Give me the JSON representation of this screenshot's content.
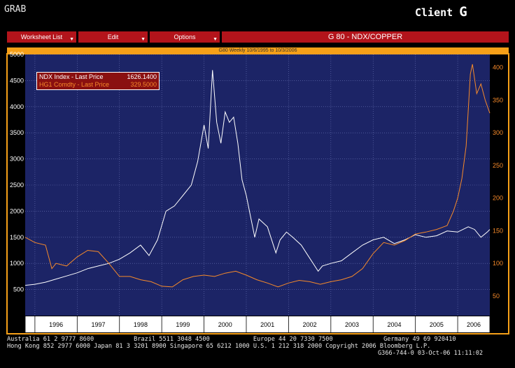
{
  "app": {
    "screen_name": "GRAB",
    "client_label": "Client",
    "client_letter": "G"
  },
  "menu": {
    "items": [
      {
        "label": "Worksheet List"
      },
      {
        "label": "Edit"
      },
      {
        "label": "Options"
      }
    ],
    "title": "G 80 - NDX/COPPER"
  },
  "chart_subtitle": "G80 Weekly 10/6/1995 to 10/3/2006",
  "legend": [
    {
      "label": "NDX Index - Last Price",
      "value": "1626.1400",
      "color": "#ffffff"
    },
    {
      "label": "HG1 Comdty - Last Price",
      "value": "329.5000",
      "color": "#f68a2a"
    }
  ],
  "footer": {
    "line1": "Australia 61 2 9777 8600           Brazil 5511 3048 4500            Europe 44 20 7330 7500              Germany 49 69 920410",
    "line2": "Hong Kong 852 2977 6000 Japan 81 3 3201 8900 Singapore 65 6212 1000 U.S. 1 212 318 2000 Copyright 2006 Bloomberg L.P.",
    "line3": "G366-744-0 03-Oct-06 11:11:02"
  },
  "colors": {
    "plot_bg": "#1c2466",
    "frame": "#f6a018",
    "grid": "#6c76b8",
    "ndx": "#ffffff",
    "copper": "#f68a2a",
    "bar_red": "#b3141b"
  },
  "chart_data": {
    "type": "line",
    "title": "G 80 - NDX/COPPER",
    "subtitle": "G80 Weekly 10/6/1995 to 10/3/2006",
    "x_range": [
      1995.77,
      2006.76
    ],
    "x_tick_labels": [
      "1996",
      "1997",
      "1998",
      "1999",
      "2000",
      "2001",
      "2002",
      "2003",
      "2004",
      "2005",
      "2006"
    ],
    "left_axis": {
      "ylim": [
        0,
        5000
      ],
      "ticks": [
        500,
        1000,
        1500,
        2000,
        2500,
        3000,
        3500,
        4000,
        4500,
        5000
      ]
    },
    "right_axis": {
      "ylim": [
        20,
        420
      ],
      "ticks": [
        50,
        100,
        150,
        200,
        250,
        300,
        350,
        400
      ]
    },
    "grid": true,
    "legend_position": "top-left",
    "series": [
      {
        "name": "NDX Index - Last Price",
        "axis": "left",
        "x": [
          1995.77,
          1996.0,
          1996.25,
          1996.5,
          1996.75,
          1997.0,
          1997.25,
          1997.5,
          1997.75,
          1998.0,
          1998.25,
          1998.5,
          1998.7,
          1998.9,
          1999.1,
          1999.3,
          1999.5,
          1999.7,
          1999.85,
          2000.0,
          2000.1,
          2000.2,
          2000.3,
          2000.4,
          2000.5,
          2000.6,
          2000.7,
          2000.8,
          2000.9,
          2001.0,
          2001.1,
          2001.2,
          2001.3,
          2001.5,
          2001.7,
          2001.8,
          2001.95,
          2002.1,
          2002.3,
          2002.5,
          2002.7,
          2002.8,
          2003.0,
          2003.25,
          2003.5,
          2003.75,
          2004.0,
          2004.25,
          2004.5,
          2004.75,
          2005.0,
          2005.25,
          2005.5,
          2005.75,
          2006.0,
          2006.25,
          2006.4,
          2006.55,
          2006.7,
          2006.76
        ],
        "y": [
          580,
          600,
          640,
          700,
          760,
          820,
          900,
          950,
          1000,
          1080,
          1200,
          1350,
          1150,
          1450,
          2000,
          2100,
          2300,
          2500,
          2950,
          3650,
          3200,
          4700,
          3700,
          3300,
          3900,
          3700,
          3800,
          3300,
          2600,
          2300,
          1900,
          1500,
          1850,
          1700,
          1200,
          1450,
          1600,
          1500,
          1350,
          1100,
          850,
          950,
          1000,
          1050,
          1200,
          1350,
          1450,
          1500,
          1380,
          1450,
          1550,
          1500,
          1530,
          1620,
          1600,
          1700,
          1650,
          1500,
          1600,
          1650
        ]
      },
      {
        "name": "HG1 Comdty - Last Price",
        "axis": "right",
        "x": [
          1995.77,
          1996.0,
          1996.25,
          1996.4,
          1996.5,
          1996.75,
          1997.0,
          1997.25,
          1997.5,
          1997.75,
          1998.0,
          1998.25,
          1998.5,
          1998.75,
          1999.0,
          1999.25,
          1999.5,
          1999.75,
          2000.0,
          2000.25,
          2000.5,
          2000.75,
          2001.0,
          2001.25,
          2001.5,
          2001.75,
          2002.0,
          2002.25,
          2002.5,
          2002.75,
          2003.0,
          2003.25,
          2003.5,
          2003.75,
          2004.0,
          2004.25,
          2004.5,
          2004.75,
          2005.0,
          2005.25,
          2005.5,
          2005.75,
          2005.9,
          2006.0,
          2006.1,
          2006.2,
          2006.3,
          2006.35,
          2006.45,
          2006.55,
          2006.65,
          2006.76
        ],
        "y": [
          140,
          132,
          128,
          92,
          100,
          96,
          110,
          120,
          118,
          100,
          80,
          80,
          75,
          72,
          65,
          64,
          75,
          80,
          82,
          80,
          85,
          88,
          82,
          75,
          70,
          64,
          70,
          74,
          72,
          68,
          72,
          75,
          80,
          92,
          115,
          132,
          128,
          135,
          145,
          148,
          152,
          158,
          180,
          200,
          230,
          280,
          390,
          405,
          360,
          375,
          350,
          330
        ]
      }
    ]
  }
}
